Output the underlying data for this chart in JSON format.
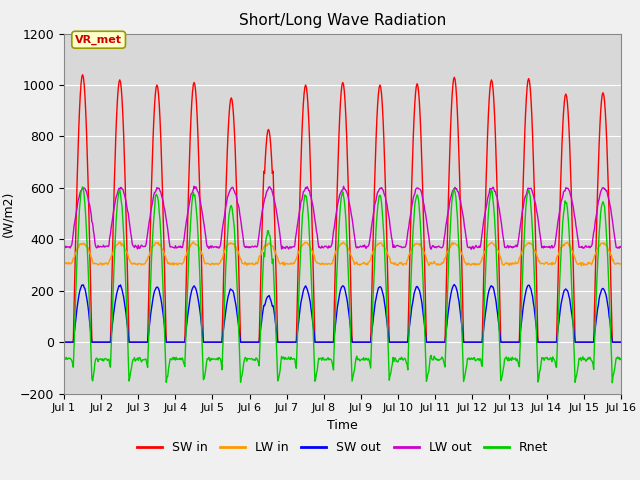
{
  "title": "Short/Long Wave Radiation",
  "xlabel": "Time",
  "ylabel": "(W/m2)",
  "ylim": [
    -200,
    1200
  ],
  "yticks": [
    -200,
    0,
    200,
    400,
    600,
    800,
    1000,
    1200
  ],
  "n_days": 15,
  "hours_per_day": 24,
  "dt": 0.5,
  "annotation_text": "VR_met",
  "series_colors": {
    "SW_in": "#ff0000",
    "LW_in": "#ff9900",
    "SW_out": "#0000ff",
    "LW_out": "#cc00cc",
    "Rnet": "#00cc00"
  },
  "bg_color": "#f0f0f0",
  "plot_bg_color": "#d8d8d8",
  "linewidth": 1.0,
  "grid_color": "#ffffff",
  "xtick_labels": [
    "Jul 1",
    "Jul 2",
    "Jul 3",
    "Jul 4",
    "Jul 5",
    "Jul 6",
    "Jul 7",
    "Jul 8",
    "Jul 9",
    "Jul 10",
    "Jul 11",
    "Jul 12",
    "Jul 13",
    "Jul 14",
    "Jul 15",
    "Jul 16"
  ]
}
